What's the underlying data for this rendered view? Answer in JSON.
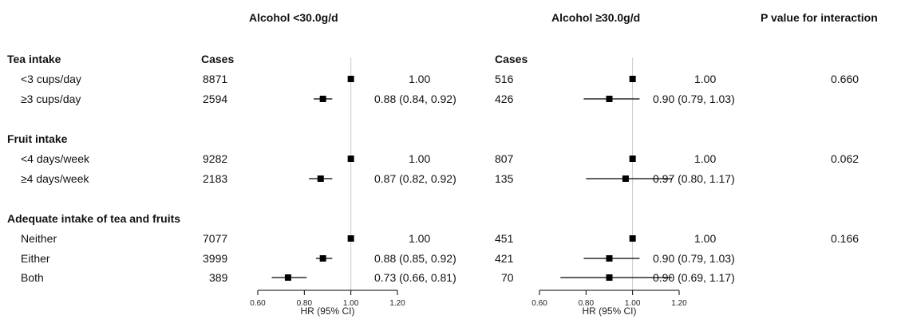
{
  "headers": {
    "group_low": "Alcohol <30.0g/d",
    "group_high": "Alcohol ≥30.0g/d",
    "p_value": "P value for interaction",
    "cases_low": "Cases",
    "cases_high": "Cases"
  },
  "sections": [
    {
      "title": "Tea intake",
      "rows": [
        {
          "label": "<3 cups/day",
          "cases_low": "8871",
          "hr_low_text": "1.00",
          "cases_high": "516",
          "hr_high_text": "1.00",
          "p": "0.660"
        },
        {
          "label": "≥3 cups/day",
          "cases_low": "2594",
          "hr_low_text": "0.88 (0.84, 0.92)",
          "cases_high": "426",
          "hr_high_text": "0.90 (0.79, 1.03)",
          "p": ""
        }
      ]
    },
    {
      "title": "Fruit intake",
      "rows": [
        {
          "label": "<4 days/week",
          "cases_low": "9282",
          "hr_low_text": "1.00",
          "cases_high": "807",
          "hr_high_text": "1.00",
          "p": "0.062"
        },
        {
          "label": "≥4 days/week",
          "cases_low": "2183",
          "hr_low_text": "0.87 (0.82, 0.92)",
          "cases_high": "135",
          "hr_high_text": "0.97 (0.80, 1.17)",
          "p": ""
        }
      ]
    },
    {
      "title": "Adequate intake of tea and fruits",
      "rows": [
        {
          "label": "Neither",
          "cases_low": "7077",
          "hr_low_text": "1.00",
          "cases_high": "451",
          "hr_high_text": "1.00",
          "p": "0.166"
        },
        {
          "label": "Either",
          "cases_low": "3999",
          "hr_low_text": "0.88 (0.85, 0.92)",
          "cases_high": "421",
          "hr_high_text": "0.90 (0.79, 1.03)",
          "p": ""
        },
        {
          "label": "Both",
          "cases_low": "389",
          "hr_low_text": "0.73 (0.66, 0.81)",
          "cases_high": "70",
          "hr_high_text": "0.90 (0.69, 1.17)",
          "p": ""
        }
      ]
    }
  ],
  "chart_data": [
    {
      "type": "forest",
      "title": "Alcohol <30.0g/d",
      "xlabel": "HR (95% CI)",
      "xlim": [
        0.6,
        1.2
      ],
      "ticks": [
        "0.60",
        "0.80",
        "1.00",
        "1.20"
      ],
      "reference_line": 1.0,
      "categories": [
        "<3 cups/day",
        "≥3 cups/day",
        "<4 days/week",
        "≥4 days/week",
        "Neither",
        "Either",
        "Both"
      ],
      "hr": [
        1.0,
        0.88,
        1.0,
        0.87,
        1.0,
        0.88,
        0.73
      ],
      "lower": [
        null,
        0.84,
        null,
        0.82,
        null,
        0.85,
        0.66
      ],
      "upper": [
        null,
        0.92,
        null,
        0.92,
        null,
        0.92,
        0.81
      ]
    },
    {
      "type": "forest",
      "title": "Alcohol ≥30.0g/d",
      "xlabel": "HR (95% CI)",
      "xlim": [
        0.6,
        1.2
      ],
      "ticks": [
        "0.60",
        "0.80",
        "1.00",
        "1.20"
      ],
      "reference_line": 1.0,
      "categories": [
        "<3 cups/day",
        "≥3 cups/day",
        "<4 days/week",
        "≥4 days/week",
        "Neither",
        "Either",
        "Both"
      ],
      "hr": [
        1.0,
        0.9,
        1.0,
        0.97,
        1.0,
        0.9,
        0.9
      ],
      "lower": [
        null,
        0.79,
        null,
        0.8,
        null,
        0.79,
        0.69
      ],
      "upper": [
        null,
        1.03,
        null,
        1.17,
        null,
        1.03,
        1.17
      ]
    }
  ]
}
